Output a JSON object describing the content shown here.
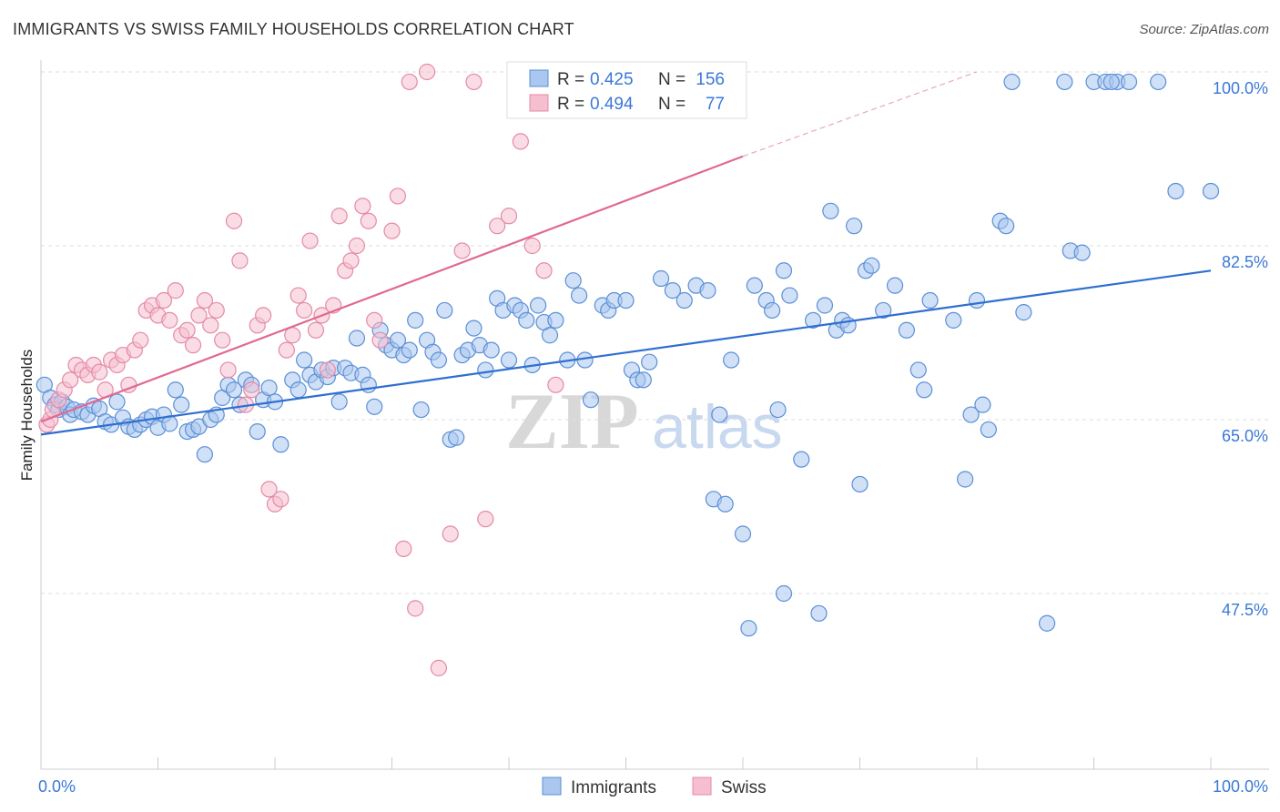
{
  "title": "IMMIGRANTS VS SWISS FAMILY HOUSEHOLDS CORRELATION CHART",
  "source": "Source: ZipAtlas.com",
  "watermark": {
    "zip": "ZIP",
    "atlas": "atlas"
  },
  "chart_data": {
    "type": "scatter",
    "xlabel": "",
    "ylabel": "Family Households",
    "xlim": [
      0,
      100
    ],
    "ylim": [
      30,
      102
    ],
    "x_tick_labels": {
      "left": "0.0%",
      "right": "100.0%"
    },
    "y_ticks": [
      {
        "value": 100.0,
        "label": "100.0%"
      },
      {
        "value": 82.5,
        "label": "82.5%"
      },
      {
        "value": 65.0,
        "label": "65.0%"
      },
      {
        "value": 47.5,
        "label": "47.5%"
      }
    ],
    "stats": [
      {
        "series": "Immigrants",
        "r_label": "R =",
        "r_value": "0.425",
        "n_label": "N =",
        "n_value": "156"
      },
      {
        "series": "Swiss",
        "r_label": "R =",
        "r_value": "0.494",
        "n_label": "N =",
        "n_value": "77"
      }
    ],
    "series": [
      {
        "name": "Immigrants",
        "fill": "#a9c7ef",
        "stroke": "#5b8fd6",
        "line_color": "#2f6fd1",
        "trend": {
          "x": [
            0,
            100
          ],
          "y": [
            63.5,
            80.0
          ]
        },
        "points": [
          [
            0.3,
            68.5
          ],
          [
            0.8,
            67.2
          ],
          [
            1.2,
            66.5
          ],
          [
            1.5,
            66.0
          ],
          [
            1.8,
            66.8
          ],
          [
            2.2,
            66.3
          ],
          [
            2.5,
            65.5
          ],
          [
            2.8,
            66.0
          ],
          [
            3.5,
            65.8
          ],
          [
            4.0,
            65.5
          ],
          [
            4.5,
            66.4
          ],
          [
            5.0,
            66.1
          ],
          [
            5.5,
            64.8
          ],
          [
            6.0,
            64.5
          ],
          [
            6.5,
            66.8
          ],
          [
            7.0,
            65.2
          ],
          [
            7.5,
            64.3
          ],
          [
            8.0,
            64.0
          ],
          [
            8.5,
            64.5
          ],
          [
            9.0,
            65.0
          ],
          [
            9.5,
            65.3
          ],
          [
            10.0,
            64.2
          ],
          [
            10.5,
            65.5
          ],
          [
            11.0,
            64.6
          ],
          [
            11.5,
            68.0
          ],
          [
            12.0,
            66.5
          ],
          [
            12.5,
            63.8
          ],
          [
            13.0,
            64.0
          ],
          [
            13.5,
            64.3
          ],
          [
            14.0,
            61.5
          ],
          [
            14.5,
            65.0
          ],
          [
            15.0,
            65.5
          ],
          [
            15.5,
            67.2
          ],
          [
            16.0,
            68.5
          ],
          [
            16.5,
            68.0
          ],
          [
            17.0,
            66.5
          ],
          [
            17.5,
            69.0
          ],
          [
            18.0,
            68.5
          ],
          [
            18.5,
            63.8
          ],
          [
            19.0,
            67.0
          ],
          [
            19.5,
            68.2
          ],
          [
            20.0,
            66.8
          ],
          [
            20.5,
            62.5
          ],
          [
            21.5,
            69.0
          ],
          [
            22.0,
            68.0
          ],
          [
            22.5,
            71.0
          ],
          [
            23.0,
            69.5
          ],
          [
            23.5,
            68.8
          ],
          [
            24.0,
            70.0
          ],
          [
            24.5,
            69.3
          ],
          [
            25.0,
            70.2
          ],
          [
            25.5,
            66.8
          ],
          [
            26.0,
            70.2
          ],
          [
            26.5,
            69.7
          ],
          [
            27.0,
            73.2
          ],
          [
            27.5,
            69.5
          ],
          [
            28.0,
            68.5
          ],
          [
            28.5,
            66.3
          ],
          [
            29.0,
            74.0
          ],
          [
            29.5,
            72.5
          ],
          [
            30.0,
            72.0
          ],
          [
            30.5,
            73.0
          ],
          [
            31.0,
            71.5
          ],
          [
            31.5,
            72.0
          ],
          [
            32.0,
            75.0
          ],
          [
            32.5,
            66.0
          ],
          [
            33.0,
            73.0
          ],
          [
            33.5,
            71.8
          ],
          [
            34.0,
            71.0
          ],
          [
            34.5,
            76.0
          ],
          [
            35.0,
            63.0
          ],
          [
            35.5,
            63.2
          ],
          [
            36.0,
            71.5
          ],
          [
            36.5,
            72.0
          ],
          [
            37.0,
            74.2
          ],
          [
            37.5,
            72.5
          ],
          [
            38.0,
            70.0
          ],
          [
            38.5,
            72.0
          ],
          [
            39.0,
            77.2
          ],
          [
            39.5,
            76.0
          ],
          [
            40.0,
            71.0
          ],
          [
            40.5,
            76.5
          ],
          [
            41.0,
            76.0
          ],
          [
            41.5,
            75.0
          ],
          [
            42.0,
            70.5
          ],
          [
            42.5,
            76.5
          ],
          [
            43.0,
            74.8
          ],
          [
            43.5,
            73.5
          ],
          [
            44.0,
            75.0
          ],
          [
            45.0,
            71.0
          ],
          [
            45.5,
            79.0
          ],
          [
            46.0,
            77.5
          ],
          [
            46.5,
            71.0
          ],
          [
            47.0,
            67.0
          ],
          [
            48.0,
            76.5
          ],
          [
            48.5,
            76.0
          ],
          [
            49.0,
            77.0
          ],
          [
            50.0,
            77.0
          ],
          [
            50.5,
            70.0
          ],
          [
            51.0,
            69.0
          ],
          [
            51.5,
            69.0
          ],
          [
            52.0,
            70.8
          ],
          [
            53.0,
            79.2
          ],
          [
            54.0,
            78.0
          ],
          [
            55.0,
            77.0
          ],
          [
            56.0,
            78.5
          ],
          [
            57.0,
            78.0
          ],
          [
            57.5,
            57.0
          ],
          [
            58.0,
            65.5
          ],
          [
            58.5,
            56.5
          ],
          [
            59.0,
            71.0
          ],
          [
            60.0,
            53.5
          ],
          [
            61.0,
            78.5
          ],
          [
            62.0,
            77.0
          ],
          [
            62.5,
            76.0
          ],
          [
            63.0,
            66.0
          ],
          [
            63.5,
            80.0
          ],
          [
            64.0,
            77.5
          ],
          [
            65.0,
            61.0
          ],
          [
            66.0,
            75.0
          ],
          [
            67.0,
            76.5
          ],
          [
            68.0,
            74.0
          ],
          [
            68.5,
            75.0
          ],
          [
            69.0,
            74.5
          ],
          [
            70.5,
            80.0
          ],
          [
            71.0,
            80.5
          ],
          [
            72.0,
            76.0
          ],
          [
            73.0,
            78.5
          ],
          [
            74.0,
            74.0
          ],
          [
            75.0,
            70.0
          ],
          [
            75.5,
            68.0
          ],
          [
            76.0,
            77.0
          ],
          [
            78.0,
            75.0
          ],
          [
            79.0,
            59.0
          ],
          [
            79.5,
            65.5
          ],
          [
            80.0,
            77.0
          ],
          [
            81.0,
            64.0
          ],
          [
            82.0,
            85.0
          ],
          [
            82.5,
            84.5
          ],
          [
            83.0,
            99.0
          ],
          [
            84.0,
            75.8
          ],
          [
            86.0,
            44.5
          ],
          [
            87.5,
            99.0
          ],
          [
            88.0,
            82.0
          ],
          [
            89.0,
            81.8
          ],
          [
            90.0,
            99.0
          ],
          [
            91.0,
            99.0
          ],
          [
            92.0,
            99.0
          ],
          [
            93.0,
            99.0
          ],
          [
            97.0,
            88.0
          ],
          [
            60.5,
            44.0
          ],
          [
            63.5,
            47.5
          ],
          [
            66.5,
            45.5
          ],
          [
            67.5,
            86.0
          ],
          [
            69.5,
            84.5
          ],
          [
            70.0,
            58.5
          ],
          [
            80.5,
            66.5
          ],
          [
            91.5,
            99.0
          ],
          [
            95.5,
            99.0
          ],
          [
            100.0,
            88.0
          ]
        ]
      },
      {
        "name": "Swiss",
        "fill": "#f6bfd0",
        "stroke": "#e48aa8",
        "line_color": "#e06a92",
        "trend": {
          "x": [
            0,
            60
          ],
          "y": [
            64.8,
            91.5
          ]
        },
        "trend_dashed": {
          "x": [
            60,
            80
          ],
          "y": [
            91.5,
            100.0
          ]
        },
        "points": [
          [
            0.5,
            64.5
          ],
          [
            0.8,
            65.0
          ],
          [
            1.0,
            66.0
          ],
          [
            1.5,
            67.0
          ],
          [
            2.0,
            68.0
          ],
          [
            2.5,
            69.0
          ],
          [
            3.0,
            70.5
          ],
          [
            3.5,
            70.0
          ],
          [
            4.0,
            69.5
          ],
          [
            4.5,
            70.5
          ],
          [
            5.0,
            69.8
          ],
          [
            5.5,
            68.0
          ],
          [
            6.0,
            71.0
          ],
          [
            6.5,
            70.5
          ],
          [
            7.0,
            71.5
          ],
          [
            7.5,
            68.5
          ],
          [
            8.0,
            72.0
          ],
          [
            8.5,
            73.0
          ],
          [
            9.0,
            76.0
          ],
          [
            9.5,
            76.5
          ],
          [
            10.0,
            75.5
          ],
          [
            10.5,
            77.0
          ],
          [
            11.0,
            75.0
          ],
          [
            11.5,
            78.0
          ],
          [
            12.0,
            73.5
          ],
          [
            12.5,
            74.0
          ],
          [
            13.0,
            72.5
          ],
          [
            13.5,
            75.5
          ],
          [
            14.0,
            77.0
          ],
          [
            14.5,
            74.5
          ],
          [
            15.0,
            76.0
          ],
          [
            15.5,
            73.0
          ],
          [
            16.0,
            70.0
          ],
          [
            16.5,
            85.0
          ],
          [
            17.0,
            81.0
          ],
          [
            17.5,
            66.5
          ],
          [
            18.0,
            68.0
          ],
          [
            18.5,
            74.5
          ],
          [
            19.0,
            75.5
          ],
          [
            19.5,
            58.0
          ],
          [
            20.0,
            56.5
          ],
          [
            20.5,
            57.0
          ],
          [
            21.0,
            72.0
          ],
          [
            21.5,
            73.5
          ],
          [
            22.0,
            77.5
          ],
          [
            22.5,
            76.0
          ],
          [
            23.0,
            83.0
          ],
          [
            23.5,
            74.0
          ],
          [
            24.0,
            75.5
          ],
          [
            24.5,
            70.0
          ],
          [
            25.0,
            76.5
          ],
          [
            25.5,
            85.5
          ],
          [
            26.0,
            80.0
          ],
          [
            26.5,
            81.0
          ],
          [
            27.0,
            82.5
          ],
          [
            27.5,
            86.5
          ],
          [
            28.0,
            85.0
          ],
          [
            28.5,
            75.0
          ],
          [
            29.0,
            73.0
          ],
          [
            30.0,
            84.0
          ],
          [
            30.5,
            87.5
          ],
          [
            31.0,
            52.0
          ],
          [
            31.5,
            99.0
          ],
          [
            32.0,
            46.0
          ],
          [
            33.0,
            100.0
          ],
          [
            34.0,
            40.0
          ],
          [
            35.0,
            53.5
          ],
          [
            36.0,
            82.0
          ],
          [
            37.0,
            99.0
          ],
          [
            38.0,
            55.0
          ],
          [
            39.0,
            84.5
          ],
          [
            40.0,
            85.5
          ],
          [
            41.0,
            93.0
          ],
          [
            42.0,
            82.5
          ],
          [
            43.0,
            80.0
          ],
          [
            44.0,
            68.5
          ],
          [
            45.0,
            100.0
          ]
        ]
      }
    ]
  },
  "legend": [
    {
      "name": "Immigrants"
    },
    {
      "name": "Swiss"
    }
  ]
}
